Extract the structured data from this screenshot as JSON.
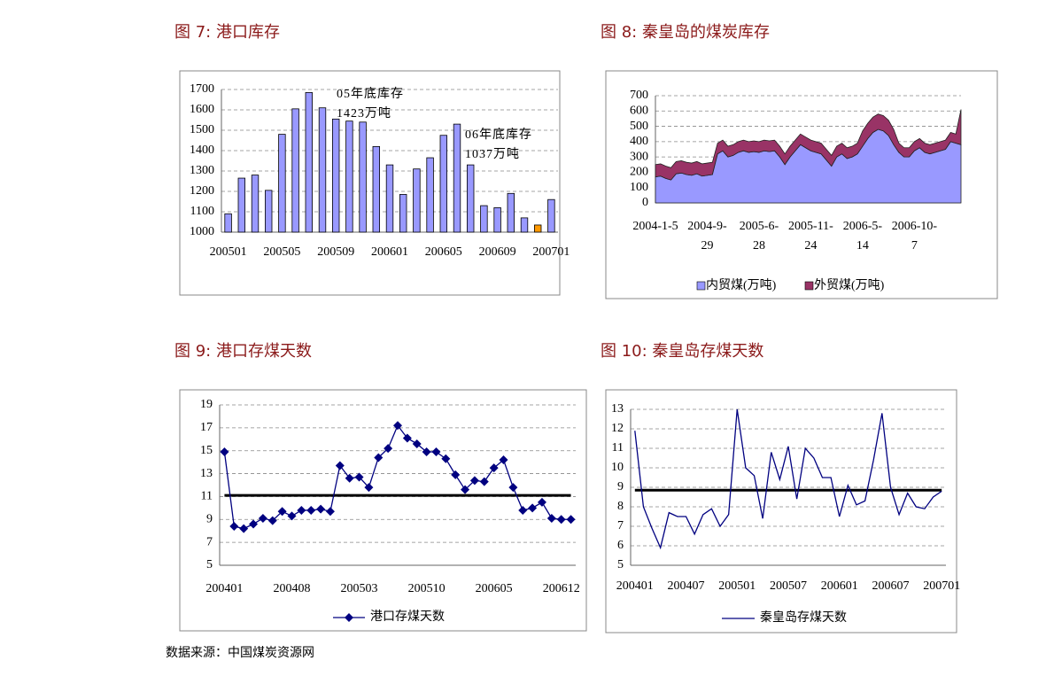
{
  "chart_data": [
    {
      "type": "bar",
      "title": "图 7: 港口库存",
      "categories": [
        "200501",
        null,
        null,
        null,
        "200505",
        null,
        null,
        null,
        "200509",
        null,
        null,
        null,
        "200601",
        null,
        null,
        null,
        "200605",
        null,
        null,
        null,
        "200609",
        null,
        null,
        null,
        "200701"
      ],
      "values": [
        1090,
        1265,
        1280,
        1205,
        1480,
        1605,
        1685,
        1610,
        1555,
        1545,
        1540,
        1420,
        1330,
        1185,
        1310,
        1365,
        1475,
        1530,
        1330,
        1130,
        1120,
        1190,
        1070,
        1035,
        1160
      ],
      "colors": [
        "#9999ff",
        "#9999ff",
        "#9999ff",
        "#9999ff",
        "#9999ff",
        "#9999ff",
        "#9999ff",
        "#9999ff",
        "#9999ff",
        "#9999ff",
        "#9999ff",
        "#9999ff",
        "#9999ff",
        "#9999ff",
        "#9999ff",
        "#9999ff",
        "#9999ff",
        "#9999ff",
        "#9999ff",
        "#9999ff",
        "#9999ff",
        "#9999ff",
        "#9999ff",
        "#ff9900",
        "#9999ff"
      ],
      "ylim": [
        1000,
        1700
      ],
      "yticks": [
        1000,
        1100,
        1200,
        1300,
        1400,
        1500,
        1600,
        1700
      ],
      "grid": true,
      "annotations": [
        {
          "lines": [
            "05年底库存",
            "1423万吨"
          ]
        },
        {
          "lines": [
            "06年底库存",
            "1037万吨"
          ]
        }
      ]
    },
    {
      "type": "area",
      "title": "图 8: 秦皇岛的煤炭库存",
      "categories": [
        "2004-1-5",
        null,
        null,
        null,
        null,
        null,
        null,
        null,
        null,
        null,
        "2004-9-29",
        null,
        null,
        null,
        null,
        null,
        null,
        null,
        null,
        null,
        "2005-6-28",
        null,
        null,
        null,
        null,
        null,
        null,
        null,
        null,
        null,
        "2005-11-24",
        null,
        null,
        null,
        null,
        null,
        null,
        null,
        null,
        null,
        "2006-5-14",
        null,
        null,
        null,
        null,
        null,
        null,
        null,
        null,
        null,
        "2006-10-7",
        null,
        null,
        null,
        null,
        null,
        null,
        null,
        null,
        null
      ],
      "series": [
        {
          "name": "内贸煤(万吨)",
          "color": "#9999ff",
          "values": [
            170,
            175,
            160,
            150,
            190,
            195,
            185,
            180,
            190,
            175,
            180,
            185,
            320,
            340,
            300,
            310,
            330,
            340,
            330,
            335,
            330,
            340,
            335,
            340,
            300,
            250,
            300,
            340,
            380,
            360,
            340,
            330,
            320,
            280,
            240,
            300,
            320,
            290,
            300,
            320,
            370,
            420,
            460,
            480,
            470,
            440,
            380,
            330,
            300,
            300,
            340,
            360,
            330,
            320,
            330,
            340,
            350,
            400,
            390,
            380
          ]
        },
        {
          "name": "外贸煤(万吨)",
          "color": "#993366",
          "values": [
            80,
            80,
            80,
            80,
            80,
            80,
            80,
            80,
            80,
            80,
            80,
            80,
            70,
            70,
            70,
            70,
            70,
            70,
            70,
            70,
            70,
            70,
            70,
            70,
            70,
            70,
            70,
            70,
            70,
            70,
            70,
            70,
            70,
            70,
            70,
            70,
            70,
            70,
            70,
            70,
            100,
            100,
            100,
            100,
            100,
            100,
            100,
            60,
            60,
            60,
            60,
            60,
            60,
            60,
            60,
            60,
            60,
            60,
            60,
            230
          ]
        }
      ],
      "ylim": [
        0,
        700
      ],
      "yticks": [
        0,
        100,
        200,
        300,
        400,
        500,
        600,
        700
      ],
      "grid": true
    },
    {
      "type": "line",
      "title": "图 9: 港口存煤天数",
      "categories": [
        "200401",
        null,
        null,
        null,
        null,
        null,
        null,
        "200408",
        null,
        null,
        null,
        null,
        null,
        null,
        "200503",
        null,
        null,
        null,
        null,
        null,
        null,
        "200510",
        null,
        null,
        null,
        null,
        null,
        null,
        "200605",
        null,
        null,
        null,
        null,
        null,
        null,
        "200612",
        null
      ],
      "series": [
        {
          "name": "港口存煤天数",
          "color": "#000080",
          "marker": "diamond",
          "values": [
            14.9,
            8.4,
            8.2,
            8.6,
            9.1,
            8.9,
            9.7,
            9.3,
            9.8,
            9.8,
            9.9,
            9.7,
            13.7,
            12.6,
            12.7,
            11.8,
            14.4,
            15.2,
            17.2,
            16.1,
            15.6,
            14.9,
            14.9,
            14.3,
            12.9,
            11.6,
            12.4,
            12.3,
            13.5,
            14.2,
            11.8,
            9.8,
            10.0,
            10.5,
            9.1,
            9.0,
            9.0
          ]
        }
      ],
      "reference_line": {
        "value": 11.1,
        "color": "#000000"
      },
      "ylim": [
        5,
        19
      ],
      "yticks": [
        5,
        7,
        9,
        11,
        13,
        15,
        17,
        19
      ],
      "grid": true
    },
    {
      "type": "line",
      "title": "图 10: 秦皇岛存煤天数",
      "categories": [
        "200401",
        null,
        null,
        null,
        null,
        null,
        "200407",
        null,
        null,
        null,
        null,
        null,
        "200501",
        null,
        null,
        null,
        null,
        null,
        "200507",
        null,
        null,
        null,
        null,
        null,
        "200601",
        null,
        null,
        null,
        null,
        null,
        "200607",
        null,
        null,
        null,
        null,
        null,
        "200701"
      ],
      "series": [
        {
          "name": "秦皇岛存煤天数",
          "color": "#000080",
          "values": [
            11.9,
            8.0,
            6.9,
            5.9,
            7.7,
            7.5,
            7.5,
            6.6,
            7.6,
            7.9,
            7.0,
            7.6,
            13.0,
            10.0,
            9.6,
            7.4,
            10.8,
            9.4,
            11.1,
            8.4,
            11.0,
            10.5,
            9.5,
            9.5,
            7.5,
            9.1,
            8.1,
            8.3,
            10.4,
            12.8,
            9.0,
            7.6,
            8.7,
            8.0,
            7.9,
            8.5,
            8.8
          ]
        }
      ],
      "reference_line": {
        "value": 8.85,
        "color": "#000000"
      },
      "ylim": [
        5,
        13
      ],
      "yticks": [
        5,
        6,
        7,
        8,
        9,
        10,
        11,
        12,
        13
      ],
      "grid": true
    }
  ],
  "source": "数据来源：中国煤炭资源网"
}
